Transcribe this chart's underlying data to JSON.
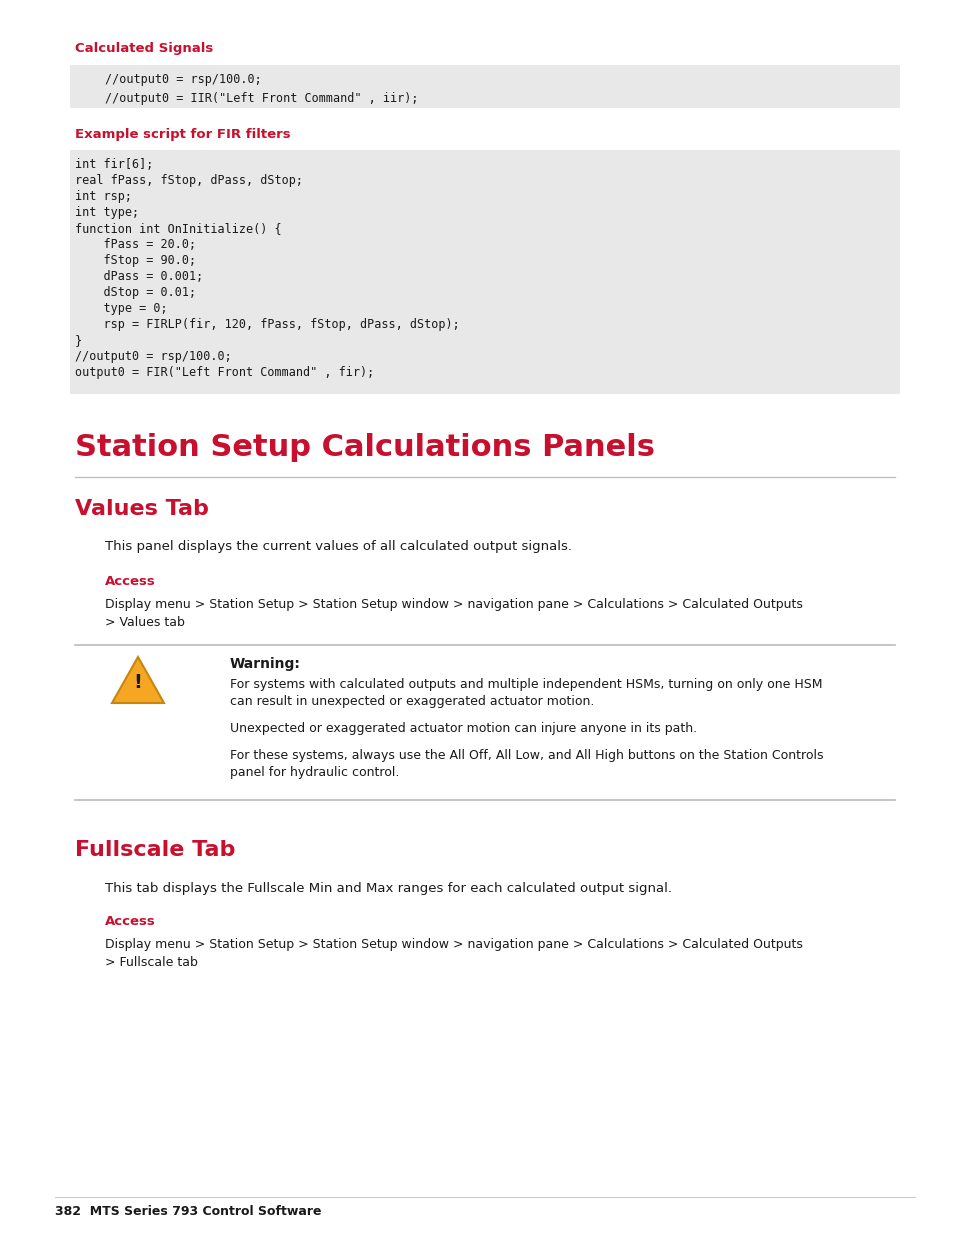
{
  "bg_color": "#ffffff",
  "page_width": 9.54,
  "page_height": 12.35,
  "red_color": "#c8102e",
  "code_bg": "#e8e8e8",
  "text_color": "#1a1a1a",
  "warn_line_color": "#bbbbbb",
  "footer_text": "382  MTS Series 793 Control Software",
  "calc_signals_label": "Calculated Signals",
  "code_block1": [
    "//output0 = rsp/100.0;",
    "//output0 = IIR(\"Left Front Command\" , iir);"
  ],
  "fir_heading": "Example script for FIR filters",
  "code_block2": [
    "int fir[6];",
    "real fPass, fStop, dPass, dStop;",
    "int rsp;",
    "int type;",
    "function int OnInitialize() {",
    "    fPass = 20.0;",
    "    fStop = 90.0;",
    "    dPass = 0.001;",
    "    dStop = 0.01;",
    "    type = 0;",
    "    rsp = FIRLP(fir, 120, fPass, fStop, dPass, dStop);",
    "}",
    "//output0 = rsp/100.0;",
    "output0 = FIR(\"Left Front Command\" , fir);"
  ],
  "main_heading": "Station Setup Calculations Panels",
  "section1_title": "Values Tab",
  "section1_body": "This panel displays the current values of all calculated output signals.",
  "access_label": "Access",
  "section1_access_line1": "Display menu > Station Setup > Station Setup window > navigation pane > Calculations > Calculated Outputs",
  "section1_access_line2": "> Values tab",
  "warning_title": "Warning:",
  "warning_line1": "For systems with calculated outputs and multiple independent HSMs, turning on only one HSM",
  "warning_line2": "can result in unexpected or exaggerated actuator motion.",
  "warning_line3": "Unexpected or exaggerated actuator motion can injure anyone in its path.",
  "warning_line4": "For these systems, always use the All Off, All Low, and All High buttons on the Station Controls",
  "warning_line5": "panel for hydraulic control.",
  "section2_title": "Fullscale Tab",
  "section2_body": "This tab displays the Fullscale Min and Max ranges for each calculated output signal.",
  "section2_access_line1": "Display menu > Station Setup > Station Setup window > navigation pane > Calculations > Calculated Outputs",
  "section2_access_line2": "> Fullscale tab"
}
